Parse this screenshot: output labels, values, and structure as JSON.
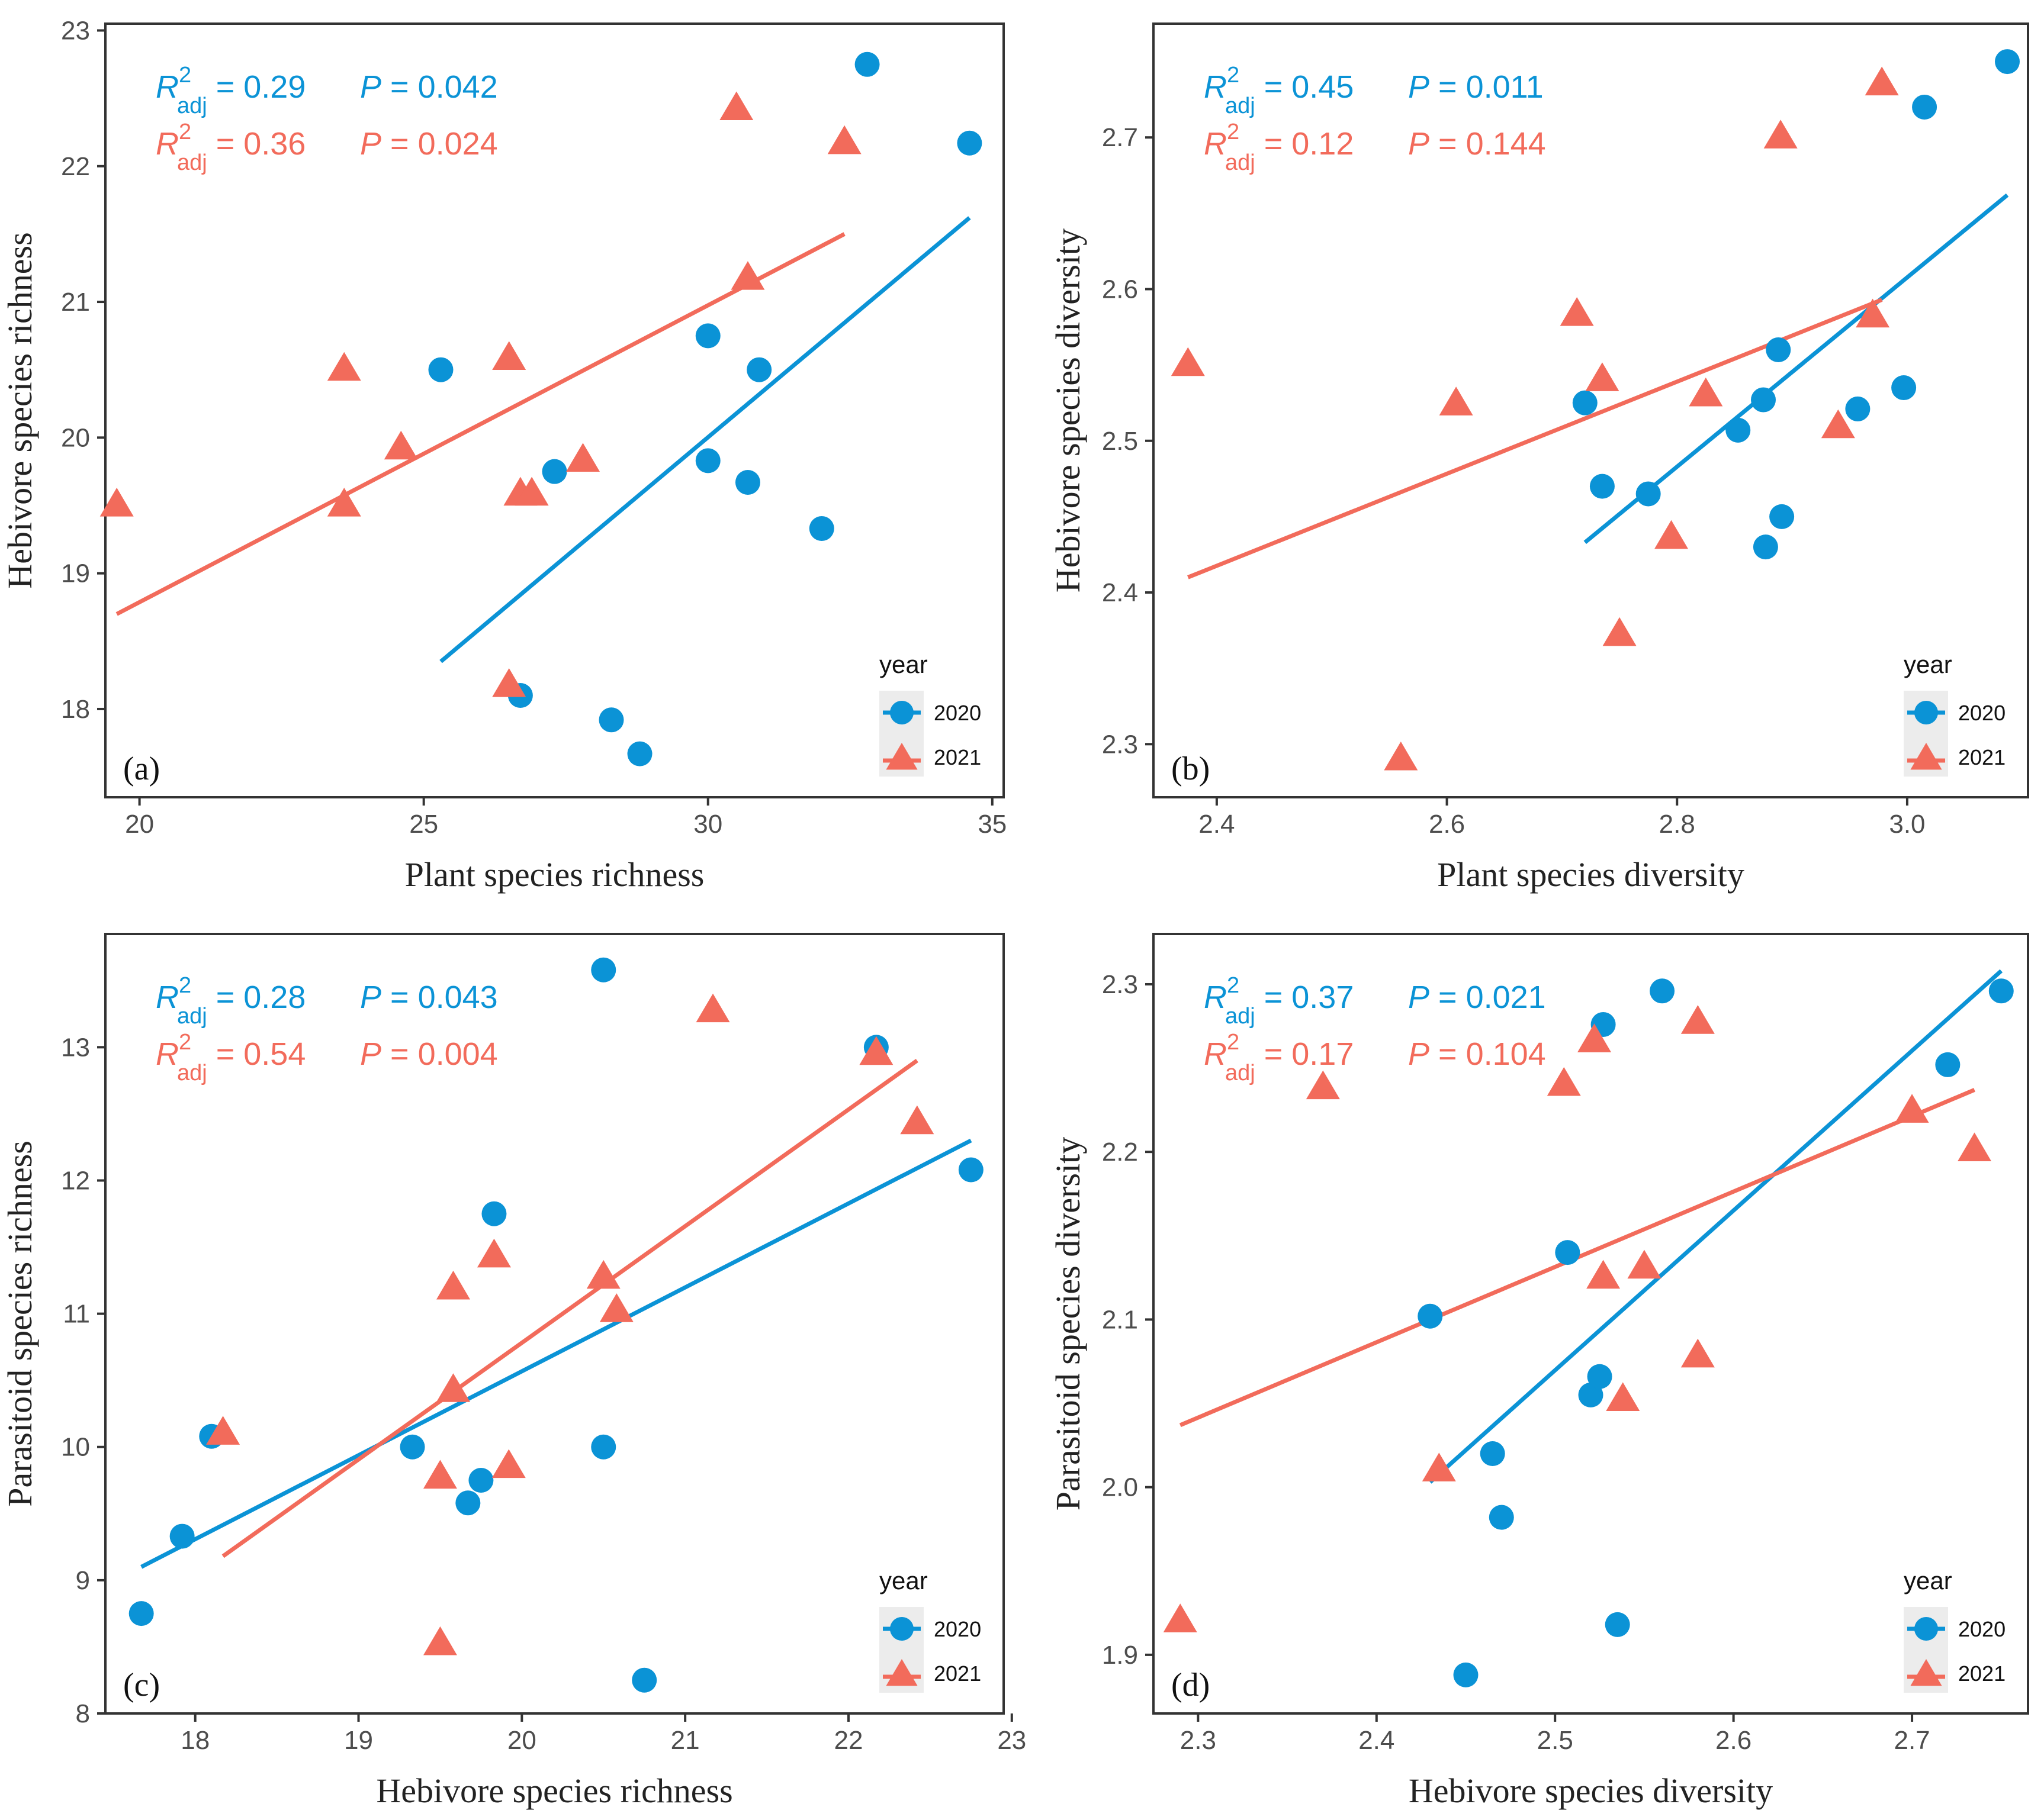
{
  "colors": {
    "2020": "#0b93d6",
    "2021": "#f26b5b"
  },
  "chart_data": [
    {
      "type": "scatter",
      "tag": "(a)",
      "xlabel": "Plant species richness",
      "ylabel": "Hebivore species richness",
      "xlim": [
        19.4,
        35.2
      ],
      "ylim": [
        17.35,
        23.05
      ],
      "xticks": [
        20,
        25,
        30,
        35
      ],
      "yticks": [
        18,
        19,
        20,
        21,
        22,
        23
      ],
      "stats": [
        {
          "year": "2020",
          "r2": "0.29",
          "p": "0.042"
        },
        {
          "year": "2021",
          "r2": "0.36",
          "p": "0.024"
        }
      ],
      "legend": {
        "title": "year",
        "items": [
          "2020",
          "2021"
        ],
        "position": "bottom-right"
      },
      "series": [
        {
          "name": "2020",
          "marker": "circle",
          "points": [
            [
              25.3,
              20.5
            ],
            [
              26.7,
              18.1
            ],
            [
              27.3,
              19.75
            ],
            [
              28.3,
              17.92
            ],
            [
              28.8,
              17.67
            ],
            [
              30.0,
              20.75
            ],
            [
              30.0,
              19.83
            ],
            [
              30.7,
              19.67
            ],
            [
              30.9,
              20.5
            ],
            [
              32.0,
              19.33
            ],
            [
              32.8,
              22.75
            ],
            [
              34.6,
              22.17
            ]
          ],
          "fit": [
            [
              25.3,
              18.35
            ],
            [
              34.6,
              21.62
            ]
          ]
        },
        {
          "name": "2021",
          "marker": "triangle",
          "points": [
            [
              19.6,
              19.5
            ],
            [
              23.6,
              20.5
            ],
            [
              23.6,
              19.5
            ],
            [
              24.6,
              19.92
            ],
            [
              26.5,
              20.58
            ],
            [
              26.5,
              18.17
            ],
            [
              26.7,
              19.58
            ],
            [
              26.9,
              19.58
            ],
            [
              27.8,
              19.83
            ],
            [
              30.5,
              22.42
            ],
            [
              30.7,
              21.17
            ],
            [
              32.4,
              22.17
            ]
          ],
          "fit": [
            [
              19.6,
              18.7
            ],
            [
              32.4,
              21.5
            ]
          ]
        }
      ]
    },
    {
      "type": "scatter",
      "tag": "(b)",
      "xlabel": "Plant species diversity",
      "ylabel": "Hebivore species diversity",
      "xlim": [
        2.345,
        3.105
      ],
      "ylim": [
        2.265,
        2.775
      ],
      "xticks": [
        2.4,
        2.6,
        2.8,
        3.0
      ],
      "yticks": [
        2.3,
        2.4,
        2.5,
        2.6,
        2.7
      ],
      "stats": [
        {
          "year": "2020",
          "r2": "0.45",
          "p": "0.011"
        },
        {
          "year": "2021",
          "r2": "0.12",
          "p": "0.144"
        }
      ],
      "legend": {
        "title": "year",
        "items": [
          "2020",
          "2021"
        ],
        "position": "bottom-right"
      },
      "series": [
        {
          "name": "2020",
          "marker": "circle",
          "points": [
            [
              2.72,
              2.525
            ],
            [
              2.735,
              2.47
            ],
            [
              2.775,
              2.465
            ],
            [
              2.853,
              2.507
            ],
            [
              2.875,
              2.527
            ],
            [
              2.877,
              2.43
            ],
            [
              2.888,
              2.56
            ],
            [
              2.891,
              2.45
            ],
            [
              2.957,
              2.521
            ],
            [
              2.997,
              2.535
            ],
            [
              3.015,
              2.72
            ],
            [
              3.087,
              2.75
            ]
          ],
          "fit": [
            [
              2.72,
              2.433
            ],
            [
              3.087,
              2.662
            ]
          ]
        },
        {
          "name": "2021",
          "marker": "triangle",
          "points": [
            [
              2.375,
              2.55
            ],
            [
              2.56,
              2.29
            ],
            [
              2.608,
              2.524
            ],
            [
              2.713,
              2.583
            ],
            [
              2.735,
              2.54
            ],
            [
              2.75,
              2.372
            ],
            [
              2.795,
              2.436
            ],
            [
              2.825,
              2.53
            ],
            [
              2.89,
              2.7
            ],
            [
              2.94,
              2.509
            ],
            [
              2.97,
              2.582
            ],
            [
              2.978,
              2.735
            ]
          ],
          "fit": [
            [
              2.375,
              2.41
            ],
            [
              2.978,
              2.593
            ]
          ]
        }
      ]
    },
    {
      "type": "scatter",
      "tag": "(c)",
      "xlabel": "Hebivore species richness",
      "ylabel": "Parasitoid species richness",
      "xlim": [
        17.45,
        22.95
      ],
      "ylim": [
        8.0,
        13.85
      ],
      "xticks": [
        18,
        19,
        20,
        21,
        22,
        23
      ],
      "yticks": [
        8,
        9,
        10,
        11,
        12,
        13
      ],
      "stats": [
        {
          "year": "2020",
          "r2": "0.28",
          "p": "0.043"
        },
        {
          "year": "2021",
          "r2": "0.54",
          "p": "0.004"
        }
      ],
      "legend": {
        "title": "year",
        "items": [
          "2020",
          "2021"
        ],
        "position": "bottom-right"
      },
      "series": [
        {
          "name": "2020",
          "marker": "circle",
          "points": [
            [
              17.67,
              8.75
            ],
            [
              17.92,
              9.33
            ],
            [
              18.1,
              10.08
            ],
            [
              19.33,
              10.0
            ],
            [
              19.67,
              9.58
            ],
            [
              19.75,
              9.75
            ],
            [
              19.83,
              11.75
            ],
            [
              20.5,
              13.58
            ],
            [
              20.5,
              10.0
            ],
            [
              20.75,
              8.25
            ],
            [
              22.17,
              13.0
            ],
            [
              22.75,
              12.08
            ]
          ],
          "fit": [
            [
              17.67,
              9.1
            ],
            [
              22.75,
              12.3
            ]
          ]
        },
        {
          "name": "2021",
          "marker": "triangle",
          "points": [
            [
              18.17,
              10.1
            ],
            [
              19.5,
              9.77
            ],
            [
              19.5,
              8.52
            ],
            [
              19.58,
              10.42
            ],
            [
              19.58,
              11.19
            ],
            [
              19.83,
              11.43
            ],
            [
              19.92,
              9.85
            ],
            [
              20.5,
              11.27
            ],
            [
              20.58,
              11.02
            ],
            [
              21.17,
              13.27
            ],
            [
              22.17,
              12.95
            ],
            [
              22.42,
              12.43
            ]
          ],
          "fit": [
            [
              18.17,
              9.18
            ],
            [
              22.42,
              12.9
            ]
          ]
        }
      ]
    },
    {
      "type": "scatter",
      "tag": "(d)",
      "xlabel": "Hebivore species diversity",
      "ylabel": "Parasitoid species diversity",
      "xlim": [
        2.275,
        2.765
      ],
      "ylim": [
        1.865,
        2.33
      ],
      "xticks": [
        2.3,
        2.4,
        2.5,
        2.6,
        2.7
      ],
      "yticks": [
        1.9,
        2.0,
        2.1,
        2.2,
        2.3
      ],
      "stats": [
        {
          "year": "2020",
          "r2": "0.37",
          "p": "0.021"
        },
        {
          "year": "2021",
          "r2": "0.17",
          "p": "0.104"
        }
      ],
      "legend": {
        "title": "year",
        "items": [
          "2020",
          "2021"
        ],
        "position": "bottom-right"
      },
      "series": [
        {
          "name": "2020",
          "marker": "circle",
          "points": [
            [
              2.43,
              2.102
            ],
            [
              2.45,
              1.888
            ],
            [
              2.465,
              2.02
            ],
            [
              2.47,
              1.982
            ],
            [
              2.507,
              2.14
            ],
            [
              2.52,
              2.055
            ],
            [
              2.525,
              2.066
            ],
            [
              2.527,
              2.276
            ],
            [
              2.535,
              1.918
            ],
            [
              2.56,
              2.296
            ],
            [
              2.72,
              2.252
            ],
            [
              2.75,
              2.296
            ]
          ],
          "fit": [
            [
              2.43,
              2.003
            ],
            [
              2.75,
              2.308
            ]
          ]
        },
        {
          "name": "2021",
          "marker": "triangle",
          "points": [
            [
              2.29,
              1.92
            ],
            [
              2.37,
              2.238
            ],
            [
              2.435,
              2.01
            ],
            [
              2.505,
              2.24
            ],
            [
              2.522,
              2.266
            ],
            [
              2.527,
              2.125
            ],
            [
              2.538,
              2.052
            ],
            [
              2.55,
              2.131
            ],
            [
              2.58,
              2.277
            ],
            [
              2.58,
              2.078
            ],
            [
              2.7,
              2.224
            ],
            [
              2.735,
              2.201
            ]
          ],
          "fit": [
            [
              2.29,
              2.037
            ],
            [
              2.735,
              2.237
            ]
          ]
        }
      ]
    }
  ]
}
